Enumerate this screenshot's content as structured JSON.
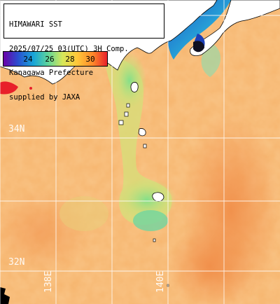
{
  "header": {
    "lines": [
      "HIMAWARI SST",
      "2025/07/25 03(UTC) 3H Comp.",
      "Kanagawa Prefecture",
      "supplied by JAXA"
    ]
  },
  "legend": {
    "labels": [
      "24",
      "26",
      "28",
      "30"
    ],
    "colors": [
      "#6a00a8",
      "#2a4fd0",
      "#18a6d8",
      "#5fd49a",
      "#d6e85a",
      "#ffc83a",
      "#ff8a2a",
      "#e8202a"
    ]
  },
  "grid": {
    "lat_labels": [
      "34N",
      "32N"
    ],
    "lon_labels": [
      "138E",
      "140E"
    ]
  },
  "colors": {
    "sea_warm": "#f6b56e",
    "sea_hot": "#f39a52",
    "sea_cool": "#8fe28c",
    "sea_cold": "#2e7fd6",
    "land": "#ffffff",
    "gridline": "#ffffff"
  }
}
